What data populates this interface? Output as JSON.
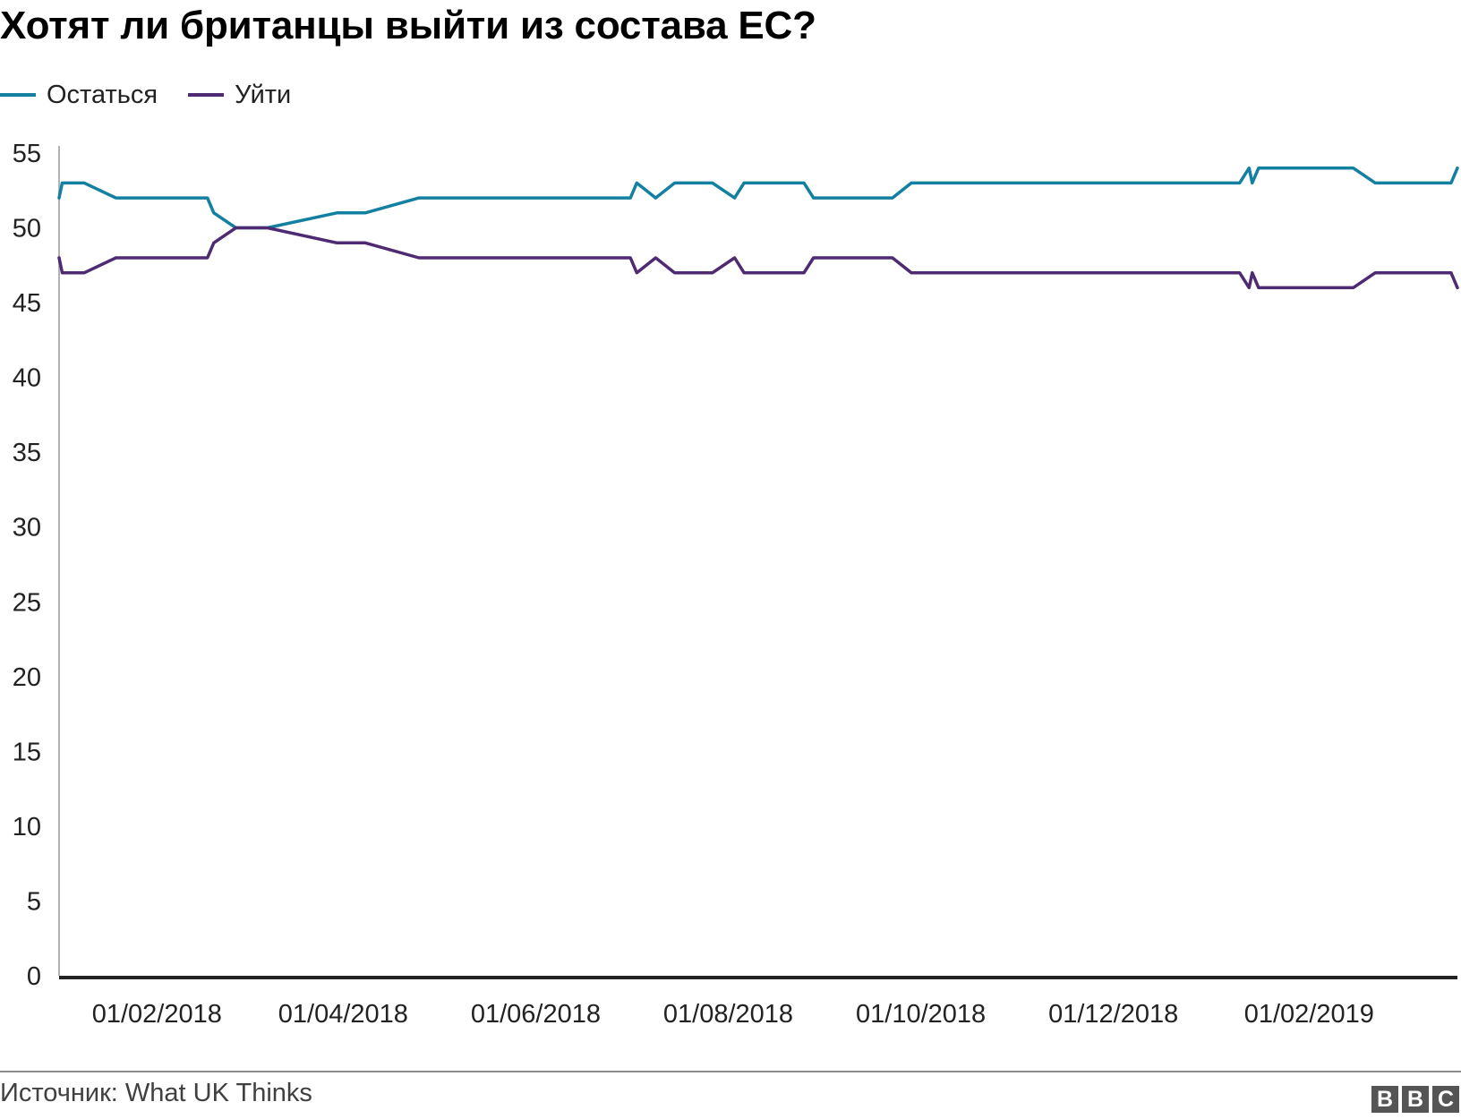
{
  "title": "Хотят ли британцы выйти из состава ЕС?",
  "source": "Источник: What UK Thinks",
  "logo": [
    "B",
    "B",
    "C"
  ],
  "chart_data": {
    "type": "line",
    "title": "Хотят ли британцы выйти из состава ЕС?",
    "xlabel": "",
    "ylabel": "",
    "ylim": [
      0,
      55
    ],
    "yticks": [
      0,
      5,
      10,
      15,
      20,
      25,
      30,
      35,
      40,
      45,
      50,
      55
    ],
    "xlim": [
      "2018-01-01",
      "2019-03-20"
    ],
    "xticks": [
      {
        "date": "2018-02-01",
        "label": "01/02/2018"
      },
      {
        "date": "2018-04-01",
        "label": "01/04/2018"
      },
      {
        "date": "2018-06-01",
        "label": "01/06/2018"
      },
      {
        "date": "2018-08-01",
        "label": "01/08/2018"
      },
      {
        "date": "2018-10-01",
        "label": "01/10/2018"
      },
      {
        "date": "2018-12-01",
        "label": "01/12/2018"
      },
      {
        "date": "2019-02-01",
        "label": "01/02/2019"
      }
    ],
    "grid": false,
    "legend": "top-left",
    "series": [
      {
        "name": "Остаться",
        "color": "#1380a1",
        "points": [
          [
            "2018-01-01",
            52
          ],
          [
            "2018-01-02",
            53
          ],
          [
            "2018-01-09",
            53
          ],
          [
            "2018-01-19",
            52
          ],
          [
            "2018-02-17",
            52
          ],
          [
            "2018-02-19",
            51
          ],
          [
            "2018-02-26",
            50
          ],
          [
            "2018-03-08",
            50
          ],
          [
            "2018-03-30",
            51
          ],
          [
            "2018-04-08",
            51
          ],
          [
            "2018-04-25",
            52
          ],
          [
            "2018-07-01",
            52
          ],
          [
            "2018-07-03",
            53
          ],
          [
            "2018-07-09",
            52
          ],
          [
            "2018-07-15",
            53
          ],
          [
            "2018-07-27",
            53
          ],
          [
            "2018-08-03",
            52
          ],
          [
            "2018-08-06",
            53
          ],
          [
            "2018-08-25",
            53
          ],
          [
            "2018-08-28",
            52
          ],
          [
            "2018-09-22",
            52
          ],
          [
            "2018-09-28",
            53
          ],
          [
            "2019-01-10",
            53
          ],
          [
            "2019-01-13",
            54
          ],
          [
            "2019-01-14",
            53
          ],
          [
            "2019-01-16",
            54
          ],
          [
            "2019-02-15",
            54
          ],
          [
            "2019-02-22",
            53
          ],
          [
            "2019-03-18",
            53
          ],
          [
            "2019-03-20",
            54
          ]
        ]
      },
      {
        "name": "Уйти",
        "color": "#4e2a73",
        "points": [
          [
            "2018-01-01",
            48
          ],
          [
            "2018-01-02",
            47
          ],
          [
            "2018-01-09",
            47
          ],
          [
            "2018-01-19",
            48
          ],
          [
            "2018-02-17",
            48
          ],
          [
            "2018-02-19",
            49
          ],
          [
            "2018-02-26",
            50
          ],
          [
            "2018-03-08",
            50
          ],
          [
            "2018-03-30",
            49
          ],
          [
            "2018-04-08",
            49
          ],
          [
            "2018-04-25",
            48
          ],
          [
            "2018-07-01",
            48
          ],
          [
            "2018-07-03",
            47
          ],
          [
            "2018-07-09",
            48
          ],
          [
            "2018-07-15",
            47
          ],
          [
            "2018-07-27",
            47
          ],
          [
            "2018-08-03",
            48
          ],
          [
            "2018-08-06",
            47
          ],
          [
            "2018-08-25",
            47
          ],
          [
            "2018-08-28",
            48
          ],
          [
            "2018-09-22",
            48
          ],
          [
            "2018-09-28",
            47
          ],
          [
            "2019-01-10",
            47
          ],
          [
            "2019-01-13",
            46
          ],
          [
            "2019-01-14",
            47
          ],
          [
            "2019-01-16",
            46
          ],
          [
            "2019-02-15",
            46
          ],
          [
            "2019-02-22",
            47
          ],
          [
            "2019-03-18",
            47
          ],
          [
            "2019-03-20",
            46
          ]
        ]
      }
    ]
  }
}
